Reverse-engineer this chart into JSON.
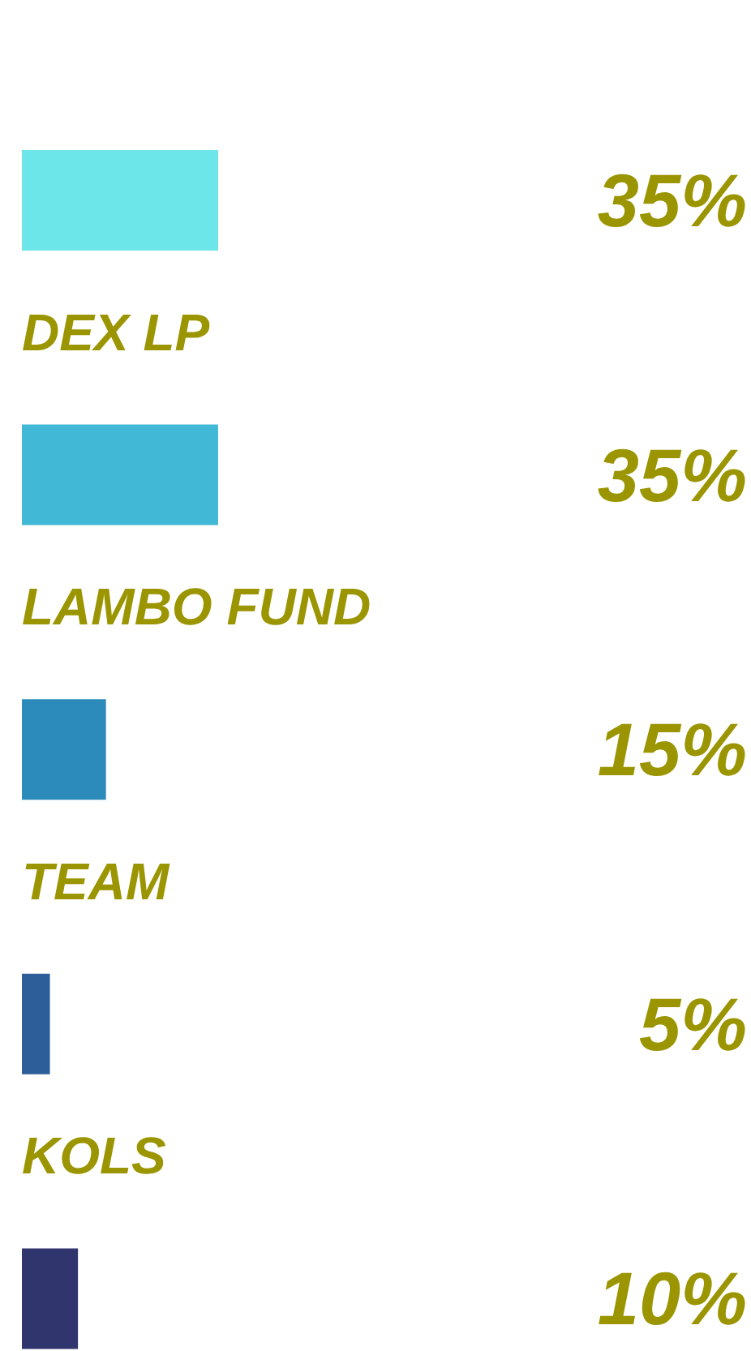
{
  "chart_data": {
    "type": "bar",
    "orientation": "horizontal",
    "categories": [
      null,
      "DEX LP",
      "LAMBO FUND",
      "TEAM",
      "KOLS"
    ],
    "values": [
      35,
      35,
      15,
      5,
      10
    ],
    "colors": [
      "#6ce6e8",
      "#40b8d6",
      "#2d8bbb",
      "#2e5e9a",
      "#30356e"
    ],
    "value_labels": [
      "35%",
      "35%",
      "15%",
      "5%",
      "10%"
    ],
    "tick_labels": false
  }
}
